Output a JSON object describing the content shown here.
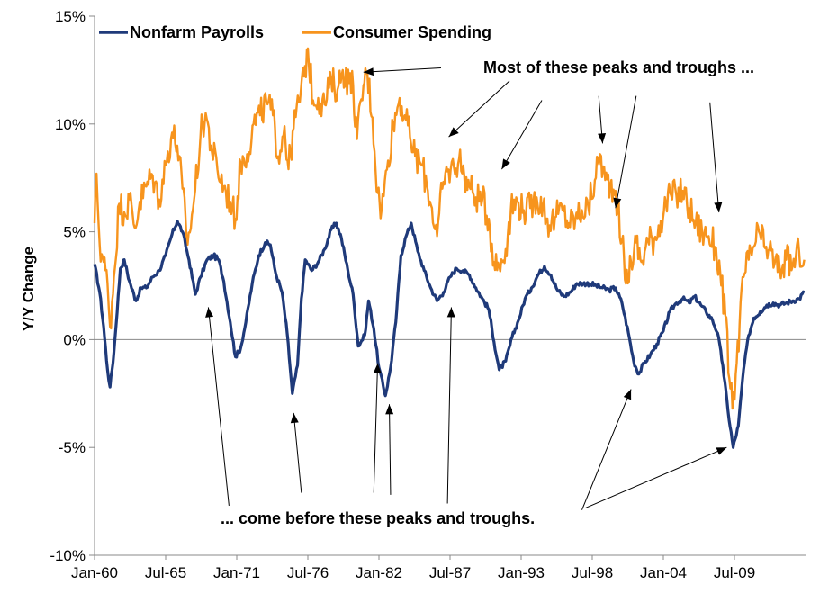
{
  "chart_data": {
    "type": "line",
    "title": "",
    "xlabel": "",
    "ylabel": "Y/Y Change",
    "x_range": [
      "Jan-60",
      "Dec-14"
    ],
    "ylim": [
      -10,
      15
    ],
    "y_ticks": [
      -10,
      -5,
      0,
      5,
      10,
      15
    ],
    "y_tick_labels": [
      "-10%",
      "-5%",
      "0%",
      "5%",
      "10%",
      "15%"
    ],
    "x_tick_labels": [
      "Jan-60",
      "Jul-65",
      "Jan-71",
      "Jul-76",
      "Jan-82",
      "Jul-87",
      "Jan-93",
      "Jul-98",
      "Jan-04",
      "Jul-09"
    ],
    "x_tick_years": [
      1960,
      1965.5,
      1971,
      1976.5,
      1982,
      1987.5,
      1993,
      1998.5,
      2004,
      2009.5
    ],
    "x_axis_end_year": 2015,
    "grid": false,
    "legend_position": "top-left",
    "series": [
      {
        "name": "Nonfarm Payrolls",
        "color": "#1f3a7a",
        "points": [
          [
            1960.0,
            3.5
          ],
          [
            1960.4,
            2.2
          ],
          [
            1960.7,
            0.6
          ],
          [
            1961.0,
            -1.4
          ],
          [
            1961.2,
            -2.2
          ],
          [
            1961.5,
            -0.6
          ],
          [
            1962.0,
            3.3
          ],
          [
            1962.3,
            3.7
          ],
          [
            1962.7,
            2.7
          ],
          [
            1963.2,
            1.8
          ],
          [
            1963.6,
            2.4
          ],
          [
            1964.0,
            2.4
          ],
          [
            1964.5,
            2.9
          ],
          [
            1965.0,
            3.2
          ],
          [
            1965.5,
            3.9
          ],
          [
            1966.0,
            4.9
          ],
          [
            1966.4,
            5.5
          ],
          [
            1966.8,
            5.0
          ],
          [
            1967.3,
            3.7
          ],
          [
            1967.8,
            2.1
          ],
          [
            1968.2,
            2.9
          ],
          [
            1968.7,
            3.7
          ],
          [
            1969.2,
            3.9
          ],
          [
            1969.6,
            3.7
          ],
          [
            1970.0,
            2.7
          ],
          [
            1970.5,
            0.8
          ],
          [
            1970.9,
            -0.8
          ],
          [
            1971.3,
            -0.4
          ],
          [
            1971.7,
            0.8
          ],
          [
            1972.2,
            2.6
          ],
          [
            1972.7,
            3.9
          ],
          [
            1973.2,
            4.5
          ],
          [
            1973.6,
            4.4
          ],
          [
            1974.0,
            3.1
          ],
          [
            1974.5,
            2.2
          ],
          [
            1974.9,
            0.3
          ],
          [
            1975.3,
            -2.5
          ],
          [
            1975.7,
            -1.2
          ],
          [
            1976.0,
            1.9
          ],
          [
            1976.3,
            3.7
          ],
          [
            1976.8,
            3.2
          ],
          [
            1977.3,
            3.6
          ],
          [
            1977.8,
            4.2
          ],
          [
            1978.3,
            5.1
          ],
          [
            1978.7,
            5.4
          ],
          [
            1979.1,
            4.7
          ],
          [
            1979.6,
            3.2
          ],
          [
            1980.0,
            2.1
          ],
          [
            1980.4,
            -0.3
          ],
          [
            1980.9,
            0.2
          ],
          [
            1981.2,
            1.8
          ],
          [
            1981.6,
            0.5
          ],
          [
            1982.0,
            -1.3
          ],
          [
            1982.5,
            -2.6
          ],
          [
            1982.9,
            -1.3
          ],
          [
            1983.3,
            0.8
          ],
          [
            1983.7,
            3.9
          ],
          [
            1984.1,
            4.8
          ],
          [
            1984.5,
            5.4
          ],
          [
            1985.0,
            4.1
          ],
          [
            1985.5,
            3.2
          ],
          [
            1986.0,
            2.4
          ],
          [
            1986.5,
            1.8
          ],
          [
            1987.0,
            2.2
          ],
          [
            1987.5,
            2.9
          ],
          [
            1988.0,
            3.3
          ],
          [
            1988.5,
            3.2
          ],
          [
            1989.0,
            3.0
          ],
          [
            1989.5,
            2.4
          ],
          [
            1990.0,
            1.9
          ],
          [
            1990.5,
            1.4
          ],
          [
            1990.9,
            -0.1
          ],
          [
            1991.3,
            -1.4
          ],
          [
            1991.8,
            -1.0
          ],
          [
            1992.3,
            0.1
          ],
          [
            1992.8,
            0.9
          ],
          [
            1993.3,
            1.9
          ],
          [
            1993.8,
            2.4
          ],
          [
            1994.3,
            3.0
          ],
          [
            1994.8,
            3.4
          ],
          [
            1995.3,
            3.0
          ],
          [
            1995.8,
            2.3
          ],
          [
            1996.3,
            2.0
          ],
          [
            1996.8,
            2.2
          ],
          [
            1997.3,
            2.6
          ],
          [
            1997.8,
            2.6
          ],
          [
            1998.3,
            2.6
          ],
          [
            1998.8,
            2.5
          ],
          [
            1999.3,
            2.4
          ],
          [
            1999.8,
            2.3
          ],
          [
            2000.3,
            2.4
          ],
          [
            2000.8,
            1.7
          ],
          [
            2001.3,
            0.3
          ],
          [
            2001.7,
            -1.0
          ],
          [
            2002.1,
            -1.6
          ],
          [
            2002.5,
            -1.1
          ],
          [
            2003.0,
            -0.7
          ],
          [
            2003.5,
            -0.2
          ],
          [
            2004.0,
            0.4
          ],
          [
            2004.5,
            1.3
          ],
          [
            2005.0,
            1.7
          ],
          [
            2005.5,
            1.9
          ],
          [
            2006.0,
            1.7
          ],
          [
            2006.4,
            2.0
          ],
          [
            2006.9,
            1.6
          ],
          [
            2007.3,
            1.3
          ],
          [
            2007.8,
            0.9
          ],
          [
            2008.2,
            0.3
          ],
          [
            2008.6,
            -1.2
          ],
          [
            2009.0,
            -3.3
          ],
          [
            2009.4,
            -5.0
          ],
          [
            2009.8,
            -4.0
          ],
          [
            2010.2,
            -1.4
          ],
          [
            2010.6,
            0.2
          ],
          [
            2011.0,
            1.0
          ],
          [
            2011.5,
            1.3
          ],
          [
            2012.0,
            1.6
          ],
          [
            2012.5,
            1.7
          ],
          [
            2013.0,
            1.6
          ],
          [
            2013.5,
            1.7
          ],
          [
            2014.0,
            1.8
          ],
          [
            2014.5,
            1.9
          ],
          [
            2014.9,
            2.2
          ]
        ]
      },
      {
        "name": "Consumer Spending",
        "color": "#f7941d",
        "points": [
          [
            1960.0,
            5.4
          ],
          [
            1960.15,
            7.7
          ],
          [
            1960.4,
            4.4
          ],
          [
            1960.7,
            3.6
          ],
          [
            1961.0,
            2.6
          ],
          [
            1961.2,
            0.6
          ],
          [
            1961.5,
            2.9
          ],
          [
            1961.9,
            6.3
          ],
          [
            1962.3,
            5.9
          ],
          [
            1962.7,
            6.5
          ],
          [
            1963.1,
            5.2
          ],
          [
            1963.5,
            6.4
          ],
          [
            1964.0,
            7.1
          ],
          [
            1964.5,
            7.6
          ],
          [
            1965.0,
            6.5
          ],
          [
            1965.5,
            8.1
          ],
          [
            1966.0,
            9.6
          ],
          [
            1966.4,
            9.0
          ],
          [
            1966.8,
            7.0
          ],
          [
            1967.2,
            4.4
          ],
          [
            1967.7,
            6.5
          ],
          [
            1968.2,
            9.5
          ],
          [
            1968.6,
            10.5
          ],
          [
            1969.0,
            9.0
          ],
          [
            1969.5,
            7.9
          ],
          [
            1970.0,
            7.1
          ],
          [
            1970.5,
            6.4
          ],
          [
            1970.9,
            5.6
          ],
          [
            1971.3,
            8.2
          ],
          [
            1971.8,
            8.6
          ],
          [
            1972.3,
            10.0
          ],
          [
            1972.8,
            10.4
          ],
          [
            1973.3,
            11.0
          ],
          [
            1973.8,
            10.4
          ],
          [
            1974.2,
            8.5
          ],
          [
            1974.7,
            9.9
          ],
          [
            1975.0,
            7.9
          ],
          [
            1975.4,
            9.8
          ],
          [
            1975.8,
            11.0
          ],
          [
            1976.2,
            12.2
          ],
          [
            1976.5,
            13.5
          ],
          [
            1976.9,
            11.1
          ],
          [
            1977.3,
            11.2
          ],
          [
            1977.8,
            10.9
          ],
          [
            1978.3,
            12.0
          ],
          [
            1978.8,
            11.6
          ],
          [
            1979.2,
            12.5
          ],
          [
            1979.7,
            11.9
          ],
          [
            1980.0,
            11.8
          ],
          [
            1980.3,
            9.3
          ],
          [
            1980.8,
            11.8
          ],
          [
            1981.1,
            12.4
          ],
          [
            1981.5,
            10.3
          ],
          [
            1981.9,
            6.8
          ],
          [
            1982.2,
            6.0
          ],
          [
            1982.7,
            8.3
          ],
          [
            1983.1,
            10.0
          ],
          [
            1983.6,
            11.2
          ],
          [
            1984.0,
            10.4
          ],
          [
            1984.4,
            9.4
          ],
          [
            1984.8,
            8.5
          ],
          [
            1985.3,
            8.1
          ],
          [
            1985.7,
            7.2
          ],
          [
            1986.1,
            6.1
          ],
          [
            1986.5,
            4.8
          ],
          [
            1986.9,
            7.0
          ],
          [
            1987.3,
            7.8
          ],
          [
            1987.8,
            8.0
          ],
          [
            1988.2,
            8.4
          ],
          [
            1988.6,
            7.6
          ],
          [
            1989.0,
            7.1
          ],
          [
            1989.5,
            6.6
          ],
          [
            1990.0,
            6.5
          ],
          [
            1990.5,
            5.6
          ],
          [
            1990.9,
            3.6
          ],
          [
            1991.3,
            3.4
          ],
          [
            1991.8,
            4.2
          ],
          [
            1992.2,
            6.0
          ],
          [
            1992.7,
            6.4
          ],
          [
            1993.2,
            6.0
          ],
          [
            1993.7,
            6.1
          ],
          [
            1994.2,
            6.6
          ],
          [
            1994.7,
            6.2
          ],
          [
            1995.2,
            5.3
          ],
          [
            1995.7,
            5.7
          ],
          [
            1996.2,
            6.0
          ],
          [
            1996.7,
            5.4
          ],
          [
            1997.2,
            5.6
          ],
          [
            1997.7,
            6.0
          ],
          [
            1998.2,
            6.1
          ],
          [
            1998.7,
            7.4
          ],
          [
            1999.1,
            8.6
          ],
          [
            1999.5,
            7.4
          ],
          [
            1999.9,
            7.2
          ],
          [
            2000.3,
            6.9
          ],
          [
            2000.8,
            4.6
          ],
          [
            2001.1,
            2.6
          ],
          [
            2001.5,
            3.6
          ],
          [
            2001.9,
            4.5
          ],
          [
            2002.3,
            3.6
          ],
          [
            2002.8,
            4.6
          ],
          [
            2003.3,
            4.7
          ],
          [
            2003.8,
            5.5
          ],
          [
            2004.2,
            6.3
          ],
          [
            2004.6,
            6.7
          ],
          [
            2005.0,
            6.7
          ],
          [
            2005.5,
            6.9
          ],
          [
            2006.0,
            6.1
          ],
          [
            2006.5,
            5.4
          ],
          [
            2007.0,
            5.0
          ],
          [
            2007.5,
            4.8
          ],
          [
            2008.0,
            4.3
          ],
          [
            2008.4,
            3.1
          ],
          [
            2008.8,
            1.1
          ],
          [
            2009.1,
            -1.8
          ],
          [
            2009.35,
            -3.2
          ],
          [
            2009.6,
            -1.6
          ],
          [
            2009.9,
            0.7
          ],
          [
            2010.2,
            2.9
          ],
          [
            2010.6,
            3.7
          ],
          [
            2011.0,
            4.3
          ],
          [
            2011.4,
            5.0
          ],
          [
            2011.8,
            4.3
          ],
          [
            2012.2,
            4.2
          ],
          [
            2012.6,
            3.5
          ],
          [
            2013.0,
            3.3
          ],
          [
            2013.5,
            3.7
          ],
          [
            2014.0,
            3.4
          ],
          [
            2014.5,
            4.1
          ],
          [
            2014.9,
            3.7
          ]
        ]
      }
    ],
    "annotations": [
      {
        "text": "Most of these peaks and troughs ...",
        "anchor": [
          1987.0,
          12.2
        ],
        "arrows": [
          {
            "from": [
              1986.8,
              12.6
            ],
            "to": [
              1980.8,
              12.4
            ]
          },
          {
            "from": [
              1992.1,
              12.0
            ],
            "to": [
              1987.4,
              9.4
            ]
          },
          {
            "from": [
              1994.6,
              11.1
            ],
            "to": [
              1991.5,
              7.9
            ]
          },
          {
            "from": [
              1999.0,
              11.3
            ],
            "to": [
              1999.3,
              9.1
            ]
          },
          {
            "from": [
              2001.9,
              11.3
            ],
            "to": [
              2000.3,
              6.1
            ]
          },
          {
            "from": [
              2007.6,
              11.0
            ],
            "to": [
              2008.3,
              5.9
            ]
          }
        ]
      },
      {
        "text": "... come before these peaks and troughs.",
        "anchor": [
          1971.2,
          -8.3
        ],
        "arrows": [
          {
            "from": [
              1970.4,
              -7.7
            ],
            "to": [
              1968.8,
              1.5
            ]
          },
          {
            "from": [
              1976.0,
              -7.1
            ],
            "to": [
              1975.4,
              -3.4
            ]
          },
          {
            "from": [
              1981.6,
              -7.1
            ],
            "to": [
              1981.9,
              -1.1
            ]
          },
          {
            "from": [
              1982.9,
              -7.2
            ],
            "to": [
              1982.8,
              -3.0
            ]
          },
          {
            "from": [
              1987.3,
              -7.6
            ],
            "to": [
              1987.6,
              1.5
            ]
          },
          {
            "from": [
              1997.7,
              -7.9
            ],
            "to": [
              2001.5,
              -2.3
            ]
          },
          {
            "from": [
              1998.0,
              -7.8
            ],
            "to": [
              2008.9,
              -5.0
            ]
          }
        ]
      }
    ]
  }
}
